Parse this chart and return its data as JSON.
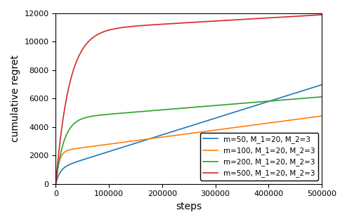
{
  "title": "",
  "xlabel": "steps",
  "ylabel": "cumulative regret",
  "xlim": [
    0,
    500000
  ],
  "ylim": [
    0,
    12000
  ],
  "yticks": [
    0,
    2000,
    4000,
    6000,
    8000,
    10000,
    12000
  ],
  "xticks": [
    0,
    100000,
    200000,
    300000,
    400000,
    500000
  ],
  "xtick_labels": [
    "0",
    "100000",
    "200000",
    "300000",
    "400000",
    "500000"
  ],
  "series": [
    {
      "label": "m=50, M_1=20, M_2=3",
      "color": "#1f77b4",
      "A": 1100,
      "tau": 8000,
      "B": 0.01175
    },
    {
      "label": "m=100, M_1=20, M_2=3",
      "color": "#ff7f0e",
      "A": 2300,
      "tau": 6000,
      "B": 0.00495
    },
    {
      "label": "m=200, M_1=20, M_2=3",
      "color": "#2ca02c",
      "A": 4600,
      "tau": 15000,
      "B": 0.00305
    },
    {
      "label": "m=500, M_1=20, M_2=3",
      "color": "#d62728",
      "A": 10800,
      "tau": 25000,
      "B": 0.0022
    }
  ],
  "legend_loc": "lower right",
  "figsize": [
    4.94,
    3.16
  ],
  "dpi": 100
}
